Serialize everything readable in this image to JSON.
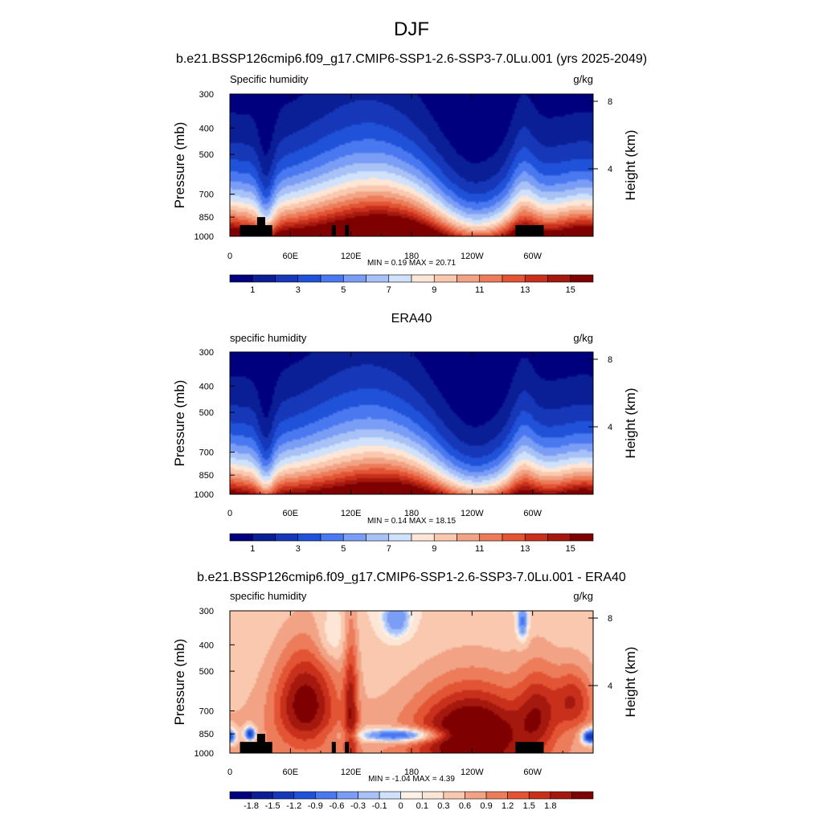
{
  "figure": {
    "title": "DJF"
  },
  "colors": {
    "full_field": [
      "#00007f",
      "#0a1e96",
      "#1638b8",
      "#1f52d8",
      "#4a78f0",
      "#7a9df5",
      "#a8c2f7",
      "#d0e2fb",
      "#fde6d6",
      "#f9c8ae",
      "#f2a385",
      "#ec7c5a",
      "#e25434",
      "#c8301c",
      "#a4180e",
      "#7f0000"
    ],
    "difference": [
      "#00007f",
      "#0a1e96",
      "#1638b8",
      "#1f52d8",
      "#4a78f0",
      "#7a9df5",
      "#a8c2f7",
      "#d0e2fb",
      "#fdf0e6",
      "#fde6d6",
      "#f9c8ae",
      "#f2a385",
      "#ec7c5a",
      "#e25434",
      "#c8301c",
      "#a4180e",
      "#7f0000"
    ],
    "topography": "#000000"
  },
  "chart_data": [
    {
      "type": "heatmap",
      "title": "b.e21.BSSP126cmip6.f09_g17.CMIP6-SSP1-2.6-SSP3-7.0Lu.001 (yrs 2025-2049)",
      "left_label": "Specific humidity",
      "right_label": "g/kg",
      "ylabel": "Pressure (mb)",
      "y2label": "Height (km)",
      "stats": "MIN =   0.19  MAX =  20.71",
      "x_ticks": [
        "0",
        "60E",
        "120E",
        "180",
        "120W",
        "60W"
      ],
      "x_tick_lon": [
        0,
        60,
        120,
        180,
        240,
        300
      ],
      "xlim": [
        0,
        360
      ],
      "y_ticks": [
        "300",
        "400",
        "500",
        "700",
        "850",
        "1000"
      ],
      "y_tick_p": [
        300,
        400,
        500,
        700,
        850,
        1000
      ],
      "ylim": [
        1000,
        300
      ],
      "y_scale": "log",
      "y2_ticks": [
        "8",
        "4"
      ],
      "y2_tick_km": [
        8,
        4
      ],
      "colorbar_labels": [
        "1",
        "3",
        "5",
        "7",
        "9",
        "11",
        "13",
        "15"
      ],
      "colorbar_levels": 16,
      "colorbar_label_every": 2,
      "colorbar_label_offset": 0,
      "palette": "full_field",
      "topography": true
    },
    {
      "type": "heatmap",
      "title": "ERA40",
      "left_label": "specific humidity",
      "right_label": "g/kg",
      "ylabel": "Pressure (mb)",
      "y2label": "Height (km)",
      "stats": "MIN =   0.14  MAX =  18.15",
      "x_ticks": [
        "0",
        "60E",
        "120E",
        "180",
        "120W",
        "60W"
      ],
      "x_tick_lon": [
        0,
        60,
        120,
        180,
        240,
        300
      ],
      "xlim": [
        0,
        360
      ],
      "y_ticks": [
        "300",
        "400",
        "500",
        "700",
        "850",
        "1000"
      ],
      "y_tick_p": [
        300,
        400,
        500,
        700,
        850,
        1000
      ],
      "ylim": [
        1000,
        300
      ],
      "y_scale": "log",
      "y2_ticks": [
        "8",
        "4"
      ],
      "y2_tick_km": [
        8,
        4
      ],
      "colorbar_labels": [
        "1",
        "3",
        "5",
        "7",
        "9",
        "11",
        "13",
        "15"
      ],
      "colorbar_levels": 16,
      "colorbar_label_every": 2,
      "colorbar_label_offset": 0,
      "palette": "full_field",
      "topography": false
    },
    {
      "type": "heatmap",
      "title": "b.e21.BSSP126cmip6.f09_g17.CMIP6-SSP1-2.6-SSP3-7.0Lu.001 - ERA40",
      "left_label": "specific humidity",
      "right_label": "g/kg",
      "ylabel": "Pressure (mb)",
      "y2label": "Height (km)",
      "stats": "MIN =  -1.04  MAX =   4.39",
      "x_ticks": [
        "0",
        "60E",
        "120E",
        "180",
        "120W",
        "60W"
      ],
      "x_tick_lon": [
        0,
        60,
        120,
        180,
        240,
        300
      ],
      "xlim": [
        0,
        360
      ],
      "y_ticks": [
        "300",
        "400",
        "500",
        "700",
        "850",
        "1000"
      ],
      "y_tick_p": [
        300,
        400,
        500,
        700,
        850,
        1000
      ],
      "ylim": [
        1000,
        300
      ],
      "y_scale": "log",
      "y2_ticks": [
        "8",
        "4"
      ],
      "y2_tick_km": [
        8,
        4
      ],
      "colorbar_labels": [
        "-1.8",
        "-1.5",
        "-1.2",
        "-0.9",
        "-0.6",
        "-0.3",
        "-0.1",
        "0",
        "0.1",
        "0.3",
        "0.6",
        "0.9",
        "1.2",
        "1.5",
        "1.8"
      ],
      "colorbar_levels": 17,
      "colorbar_label_every": 1,
      "colorbar_label_offset": 0,
      "palette": "difference",
      "topography": true
    }
  ]
}
